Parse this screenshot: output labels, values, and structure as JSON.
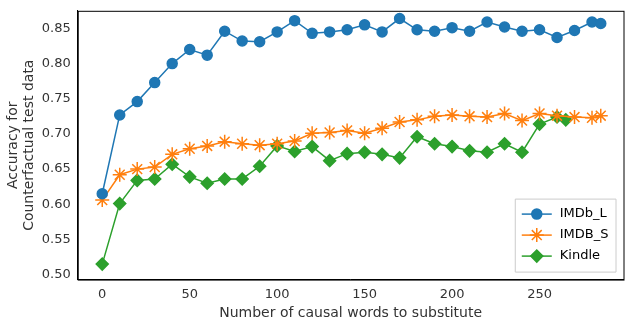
{
  "chart_data": {
    "type": "line",
    "x_label": "Number of causal words to substitute",
    "y_label": [
      "Accuracy for",
      "Counterfactual test data"
    ],
    "xlim": [
      -14,
      298
    ],
    "xticks": [
      0,
      50,
      100,
      150,
      200,
      250
    ],
    "ylim": [
      0.493,
      0.875
    ],
    "yticks": [
      {
        "value": 0.5,
        "label": "0.50"
      },
      {
        "value": 0.55,
        "label": "0.55"
      },
      {
        "value": 0.6,
        "label": "0.60"
      },
      {
        "value": 0.65,
        "label": "0.65"
      },
      {
        "value": 0.7,
        "label": "0.70"
      },
      {
        "value": 0.75,
        "label": "0.75"
      },
      {
        "value": 0.8,
        "label": "0.80"
      },
      {
        "value": 0.85,
        "label": "0.85"
      }
    ],
    "grid": false,
    "legend": "lower right",
    "series": [
      {
        "name": "IMDb_L",
        "color": "#1f77b4",
        "marker": "circle",
        "line_style": "solid",
        "x": [
          0,
          10,
          20,
          30,
          40,
          50,
          60,
          70,
          80,
          90,
          100,
          110,
          120,
          130,
          140,
          150,
          160,
          170,
          180,
          190,
          200,
          210,
          220,
          230,
          240,
          250,
          260,
          270,
          280,
          285
        ],
        "values": [
          0.615,
          0.727,
          0.746,
          0.773,
          0.8,
          0.82,
          0.812,
          0.846,
          0.832,
          0.831,
          0.845,
          0.861,
          0.843,
          0.845,
          0.848,
          0.855,
          0.845,
          0.864,
          0.848,
          0.846,
          0.851,
          0.846,
          0.859,
          0.852,
          0.846,
          0.848,
          0.837,
          0.847,
          0.859,
          0.857
        ]
      },
      {
        "name": "IMDB_S",
        "color": "#ff7f0e",
        "marker": "star",
        "line_style": "solid",
        "x": [
          0,
          10,
          20,
          30,
          40,
          50,
          60,
          70,
          80,
          90,
          100,
          110,
          120,
          130,
          140,
          150,
          160,
          170,
          180,
          190,
          200,
          210,
          220,
          230,
          240,
          250,
          260,
          270,
          280,
          285
        ],
        "values": [
          0.606,
          0.642,
          0.65,
          0.653,
          0.671,
          0.679,
          0.683,
          0.689,
          0.686,
          0.684,
          0.686,
          0.69,
          0.701,
          0.702,
          0.705,
          0.701,
          0.708,
          0.717,
          0.72,
          0.725,
          0.727,
          0.725,
          0.724,
          0.729,
          0.719,
          0.729,
          0.726,
          0.724,
          0.723,
          0.726
        ]
      },
      {
        "name": "Kindle",
        "color": "#2ca02c",
        "marker": "diamond",
        "line_style": "solid",
        "x": [
          0,
          10,
          20,
          30,
          40,
          50,
          60,
          70,
          80,
          90,
          100,
          110,
          120,
          130,
          140,
          150,
          160,
          170,
          180,
          190,
          200,
          210,
          220,
          230,
          240,
          250,
          260,
          265
        ],
        "values": [
          0.515,
          0.601,
          0.634,
          0.636,
          0.657,
          0.639,
          0.63,
          0.636,
          0.636,
          0.654,
          0.683,
          0.675,
          0.682,
          0.662,
          0.672,
          0.674,
          0.671,
          0.666,
          0.696,
          0.686,
          0.682,
          0.676,
          0.674,
          0.686,
          0.674,
          0.714,
          0.724,
          0.72
        ]
      }
    ]
  }
}
